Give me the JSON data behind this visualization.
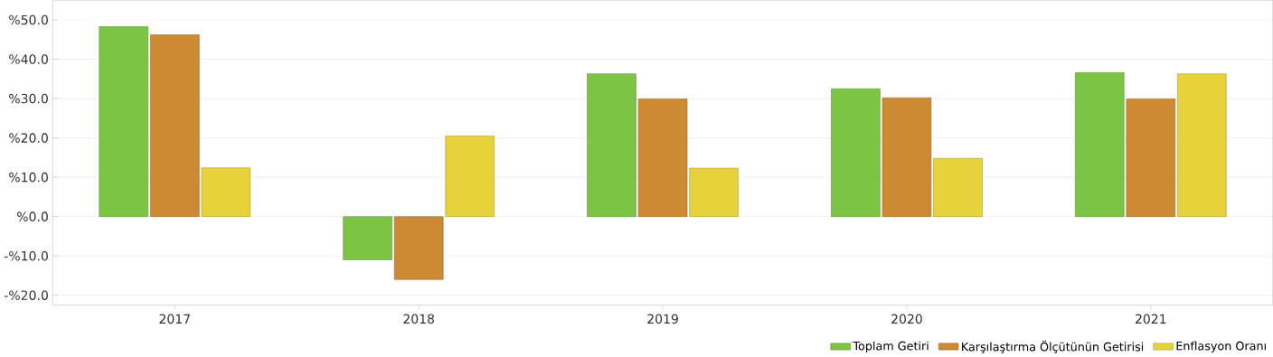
{
  "chart_data": {
    "type": "bar",
    "categories": [
      "2017",
      "2018",
      "2019",
      "2020",
      "2021"
    ],
    "series": [
      {
        "name": "Toplam Getiri",
        "color": "#7cc443",
        "values": [
          48.3,
          -11.0,
          36.3,
          32.5,
          36.6
        ]
      },
      {
        "name": "Karşılaştırma Ölçütünün Getirisi",
        "color": "#cc8a33",
        "values": [
          46.2,
          -16.0,
          29.9,
          30.2,
          29.9
        ]
      },
      {
        "name": "Enflasyon Oranı",
        "color": "#e6d23a",
        "values": [
          12.4,
          20.5,
          12.3,
          14.8,
          36.3
        ]
      }
    ],
    "ylim": [
      -22.5,
      55
    ],
    "yticks": [
      {
        "value": -20,
        "label": "-%20.0"
      },
      {
        "value": -10,
        "label": "-%10.0"
      },
      {
        "value": 0,
        "label": "%0.0"
      },
      {
        "value": 10,
        "label": "%10.0"
      },
      {
        "value": 20,
        "label": "%20.0"
      },
      {
        "value": 30,
        "label": "%30.0"
      },
      {
        "value": 40,
        "label": "%40.0"
      },
      {
        "value": 50,
        "label": "%50.0"
      }
    ],
    "grid": "y",
    "legend": "bottom right"
  }
}
